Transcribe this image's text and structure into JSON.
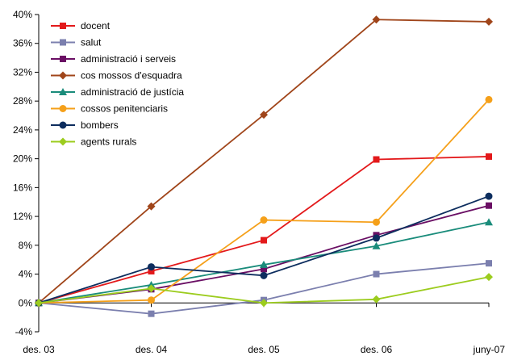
{
  "chart_data": {
    "type": "line",
    "x": [
      "des. 03",
      "des. 04",
      "des. 05",
      "des. 06",
      "juny-07"
    ],
    "ylim": [
      -4,
      40
    ],
    "yticks": [
      -4,
      0,
      4,
      8,
      12,
      16,
      20,
      24,
      28,
      32,
      36,
      40
    ],
    "ytick_labels": [
      "-4%",
      "0%",
      "4%",
      "8%",
      "12%",
      "16%",
      "20%",
      "24%",
      "28%",
      "32%",
      "36%",
      "40%"
    ],
    "grid": false,
    "legend_position": "top-left",
    "series": [
      {
        "name": "docent",
        "color": "#e3191b",
        "marker": "square",
        "values": [
          0,
          4.4,
          8.7,
          19.9,
          20.3
        ]
      },
      {
        "name": "salut",
        "color": "#7b7fae",
        "marker": "square",
        "values": [
          0,
          -1.5,
          0.4,
          4.0,
          5.5
        ]
      },
      {
        "name": "administració i serveis",
        "color": "#6a0f64",
        "marker": "square",
        "values": [
          0,
          1.9,
          4.7,
          9.4,
          13.5
        ]
      },
      {
        "name": "cos mossos d'esquadra",
        "color": "#a0451a",
        "marker": "diamond",
        "values": [
          0,
          13.4,
          26.1,
          39.3,
          39.0
        ]
      },
      {
        "name": "administració de justícia",
        "color": "#1a8c7b",
        "marker": "triangle",
        "values": [
          0,
          2.5,
          5.3,
          7.9,
          11.2
        ]
      },
      {
        "name": "cossos penitenciaris",
        "color": "#f5a01a",
        "marker": "circle",
        "values": [
          0,
          0.4,
          11.5,
          11.2,
          28.2
        ]
      },
      {
        "name": "bombers",
        "color": "#0d2d5e",
        "marker": "circle",
        "values": [
          0,
          5.0,
          3.8,
          9.0,
          14.8
        ]
      },
      {
        "name": "agents rurals",
        "color": "#9ccc1e",
        "marker": "diamond",
        "values": [
          0,
          2.0,
          0.0,
          0.5,
          3.6
        ]
      }
    ]
  }
}
